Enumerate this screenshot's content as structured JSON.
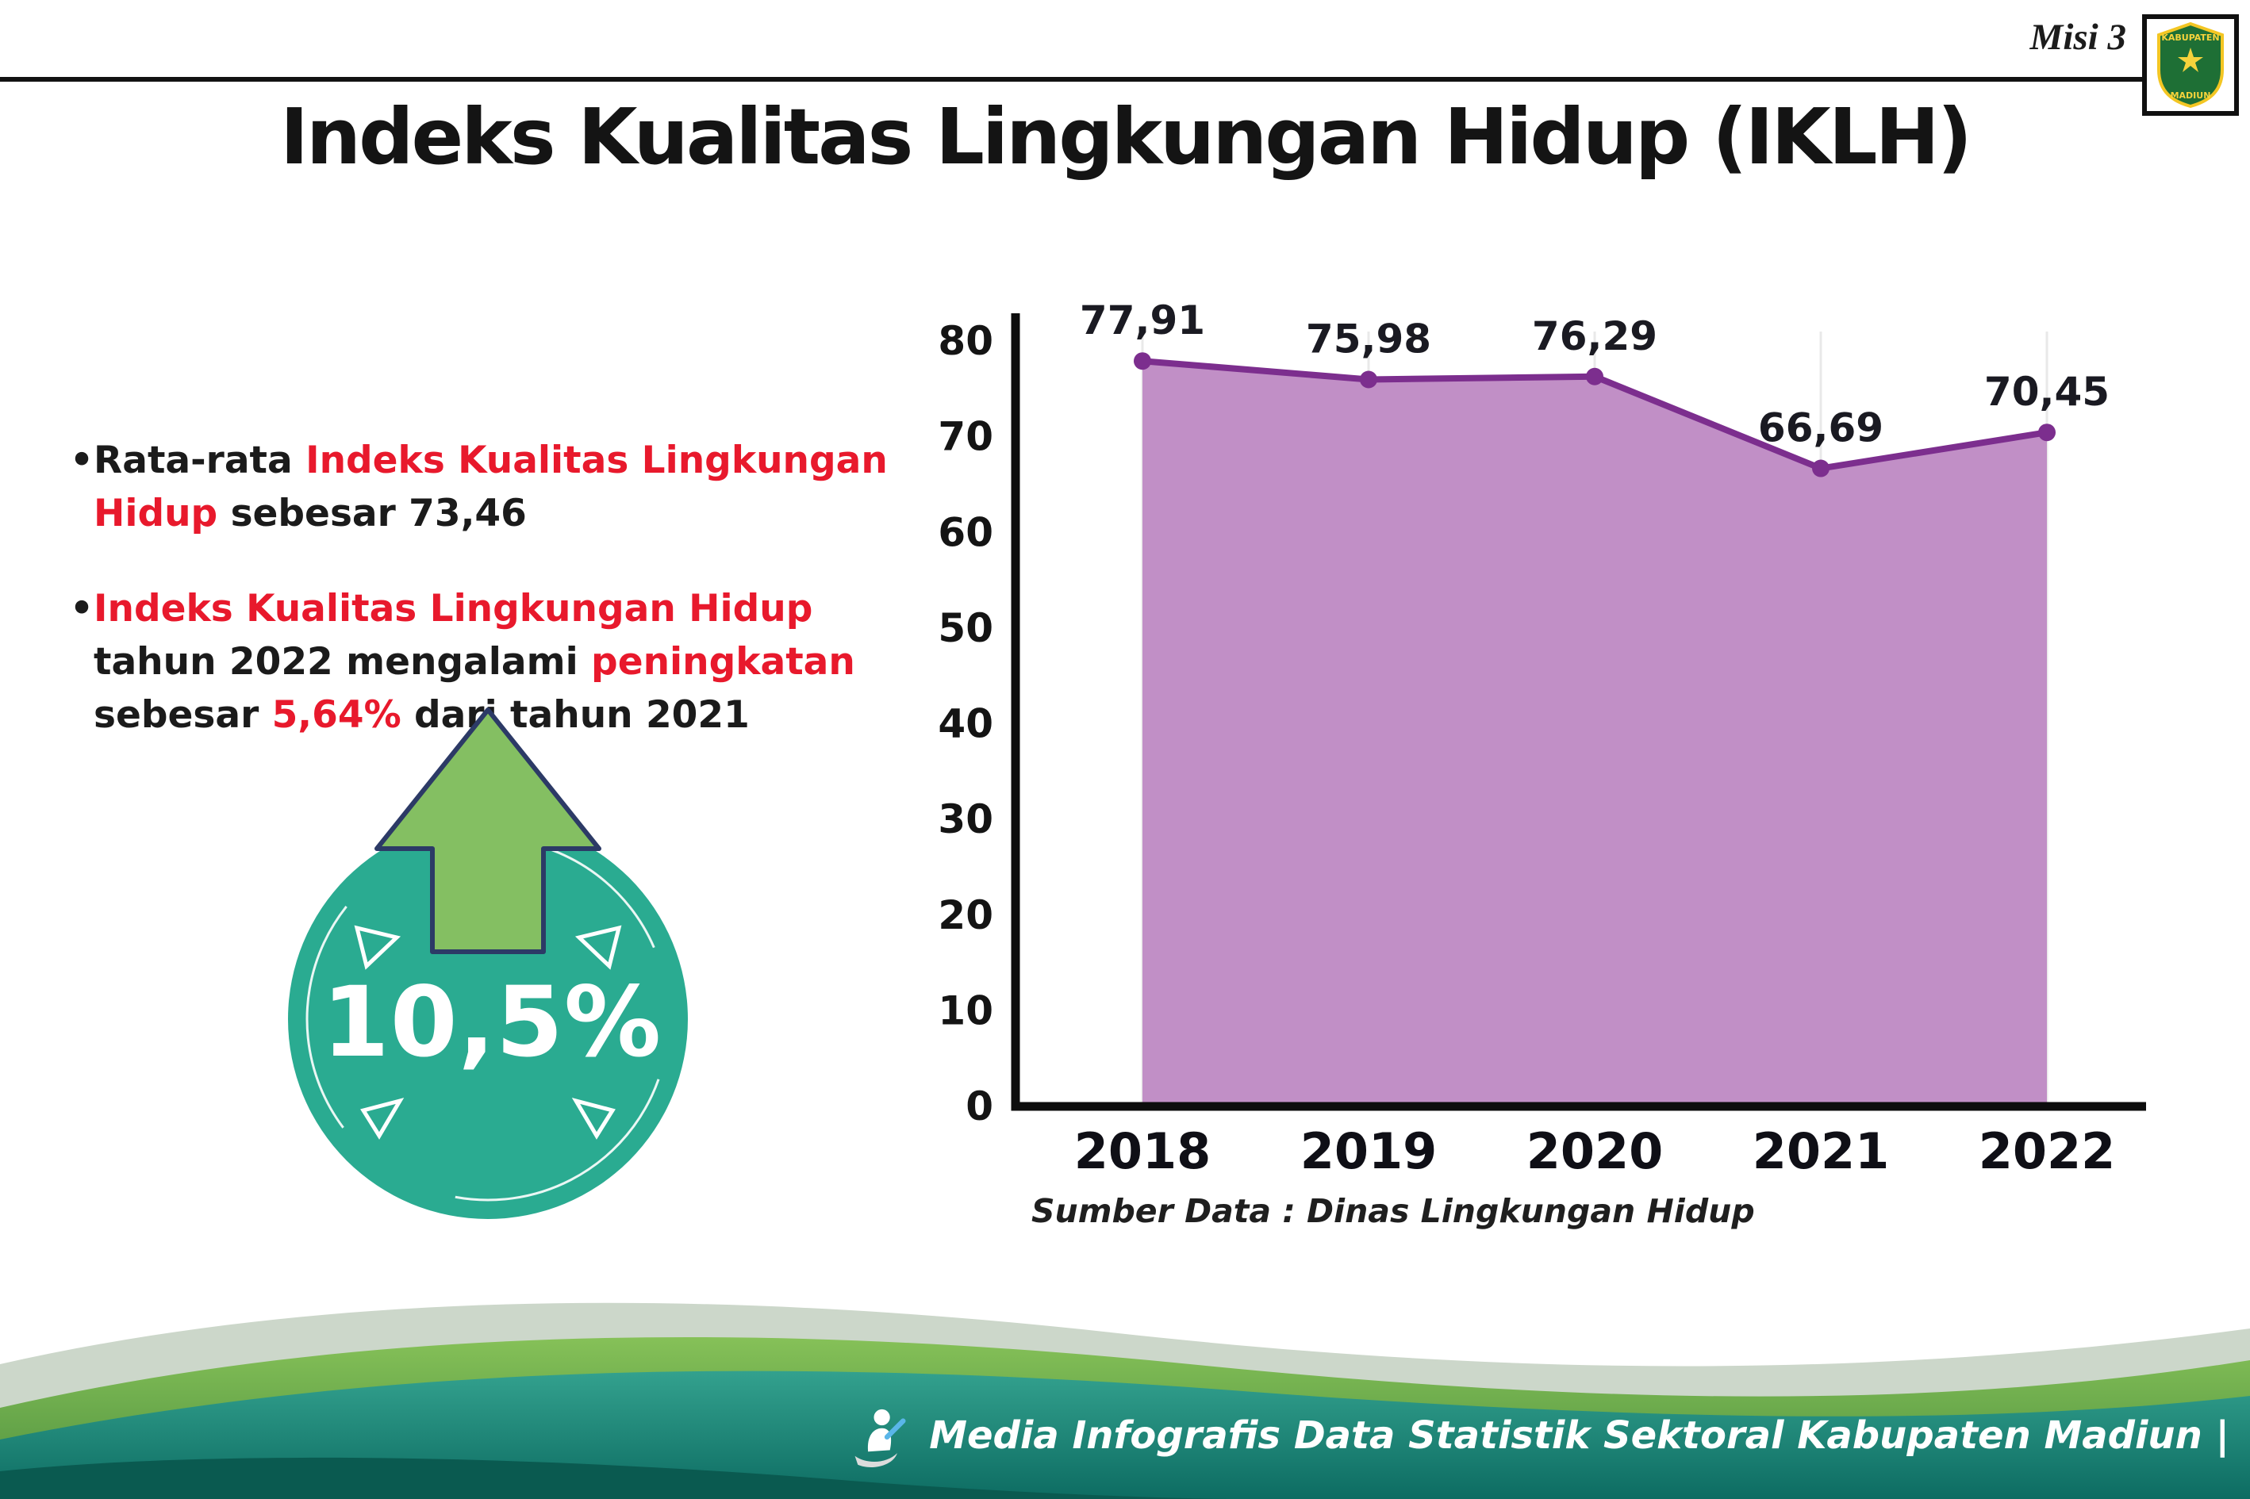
{
  "header": {
    "misi_label": "Misi 3",
    "title": "Indeks Kualitas Lingkungan Hidup (IKLH)"
  },
  "logo": {
    "top_text": "KABUPATEN",
    "bottom_text": "MADIUN"
  },
  "bullets": [
    {
      "segments": [
        {
          "text": "•",
          "color": "#1b1b1b"
        },
        {
          "text": "Rata-rata ",
          "color": "#1b1b1b"
        },
        {
          "text": "Indeks Kualitas Lingkungan Hidup",
          "color": "#e8192c"
        },
        {
          "text": " sebesar 73,46",
          "color": "#1b1b1b"
        }
      ]
    },
    {
      "segments": [
        {
          "text": "•",
          "color": "#1b1b1b"
        },
        {
          "text": "Indeks Kualitas Lingkungan Hidup",
          "color": "#e8192c"
        },
        {
          "text": " tahun 2022 mengalami ",
          "color": "#1b1b1b"
        },
        {
          "text": "peningkatan",
          "color": "#e8192c"
        },
        {
          "text": " sebesar ",
          "color": "#1b1b1b"
        },
        {
          "text": "5,64%",
          "color": "#e8192c"
        },
        {
          "text": " dari tahun 2021",
          "color": "#1b1b1b"
        }
      ]
    }
  ],
  "badge": {
    "value": "10,5%",
    "circle_color": "#2aab91",
    "arrow_color": "#84bf62",
    "arrow_outline": "#2c3a66"
  },
  "chart_data": {
    "type": "area",
    "title": "Indeks Kualitas Lingkungan Hidup (IKLH) 2018-2022",
    "x": [
      "2018",
      "2019",
      "2020",
      "2021",
      "2022"
    ],
    "values": [
      77.91,
      75.98,
      76.29,
      66.69,
      70.45
    ],
    "point_labels": [
      "77,91",
      "75,98",
      "76,29",
      "66,69",
      "70,45"
    ],
    "ylim": [
      0,
      80
    ],
    "yticks": [
      0,
      10,
      20,
      30,
      40,
      50,
      60,
      70,
      80
    ],
    "xlabel": "",
    "ylabel": "",
    "grid": "light-vertical",
    "legend": "none",
    "area_fill": "#c18fc6",
    "line_color": "#7c2e8e",
    "label_color": "#1a1a22",
    "source": "Sumber Data : Dinas Lingkungan Hidup"
  },
  "footer": {
    "credit": "Media Infografis Data Statistik Sektoral Kabupaten Madiun |"
  }
}
